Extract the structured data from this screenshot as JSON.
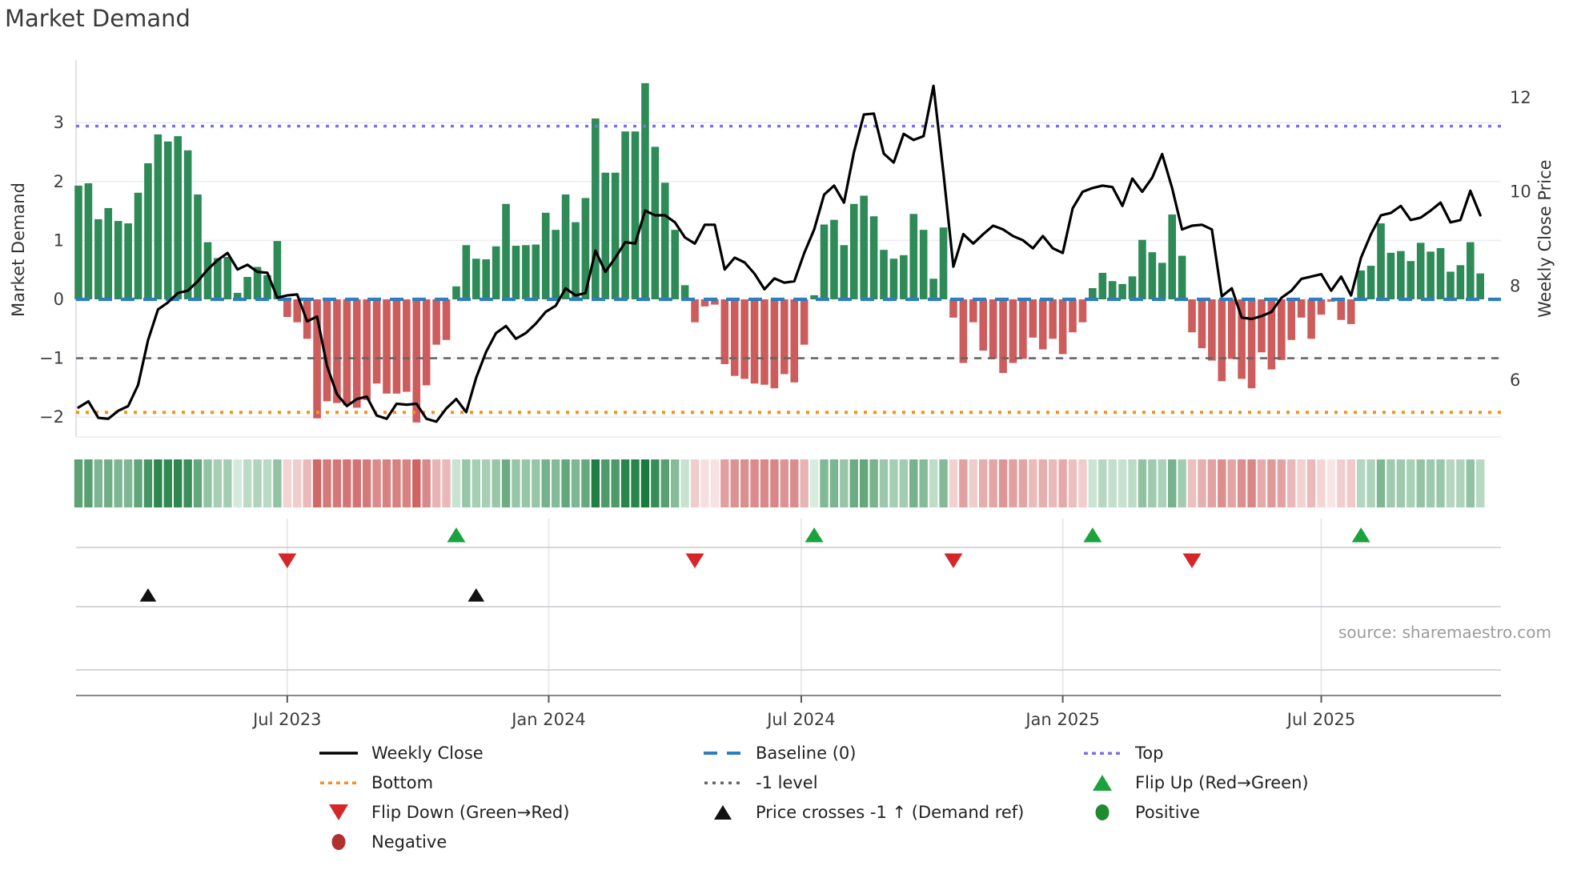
{
  "title": "Market Demand",
  "source_text": "source: sharemaestro.com",
  "left_axis": {
    "label": "Market Demand",
    "ticks": [
      {
        "v": 3,
        "t": "3"
      },
      {
        "v": 2,
        "t": "2"
      },
      {
        "v": 1,
        "t": "1"
      },
      {
        "v": 0,
        "t": "0"
      },
      {
        "v": -1,
        "t": "−1"
      },
      {
        "v": -2,
        "t": "−2"
      }
    ]
  },
  "right_axis": {
    "label": "Weekly Close Price",
    "ticks": [
      {
        "v": 12,
        "t": "12"
      },
      {
        "v": 10,
        "t": "10"
      },
      {
        "v": 8,
        "t": "8"
      },
      {
        "v": 6,
        "t": "6"
      }
    ]
  },
  "x_axis": {
    "ticks": [
      {
        "label": "Jul 2023",
        "week": 21.0
      },
      {
        "label": "Jan 2024",
        "week": 47.3
      },
      {
        "label": "Jul 2024",
        "week": 72.7
      },
      {
        "label": "Jan 2025",
        "week": 99.0
      },
      {
        "label": "Jul 2025",
        "week": 125.0
      }
    ]
  },
  "legend": [
    {
      "label": "Weekly Close",
      "swatch": "line-black",
      "col": 0,
      "row": 0
    },
    {
      "label": "Bottom",
      "swatch": "dot-orange",
      "col": 0,
      "row": 1
    },
    {
      "label": "Flip Down (Green→Red)",
      "swatch": "tri-down-red",
      "col": 0,
      "row": 2
    },
    {
      "label": "Negative",
      "swatch": "circle-darkred",
      "col": 0,
      "row": 3
    },
    {
      "label": "Baseline (0)",
      "swatch": "dash-blue",
      "col": 1,
      "row": 0
    },
    {
      "label": "-1 level",
      "swatch": "dot-gray",
      "col": 1,
      "row": 1
    },
    {
      "label": "Price crosses -1 ↑ (Demand ref)",
      "swatch": "tri-up-black",
      "col": 1,
      "row": 2
    },
    {
      "label": "Top",
      "swatch": "dot-purple",
      "col": 2,
      "row": 0
    },
    {
      "label": "Flip Up (Red→Green)",
      "swatch": "tri-up-green",
      "col": 2,
      "row": 1
    },
    {
      "label": "Positive",
      "swatch": "circle-green",
      "col": 2,
      "row": 2
    }
  ],
  "colors": {
    "bar_positive": "#2e8b57",
    "bar_negative": "#cd5c5c",
    "price_line": "#000000",
    "baseline": "#2e7ebf",
    "top_line": "#7b72e9",
    "bottom_line": "#f59120",
    "minus1_line": "#666666",
    "flip_up": "#1aa33c",
    "flip_down": "#d62728",
    "price_cross": "#111111",
    "positive_dot": "#1e8b2e",
    "negative_dot": "#b03030",
    "grid": "#ececf2",
    "spine": "#d9d9e3",
    "panel_grid": "#c9c9cf",
    "panel_vgrid": "#e4e4ea",
    "axis_line": "#8a8a8a",
    "tick_text": "#444444"
  },
  "chart_data": {
    "type": "bar+line",
    "title": "Market Demand",
    "x_unit": "week (Feb 2023 – Oct 2025)",
    "ylabel_left": "Market Demand",
    "ylabel_right": "Weekly Close Price",
    "ylim_left": [
      -2.6,
      4.1
    ],
    "ylim_right": [
      4.8,
      12.8
    ],
    "grid": true,
    "legend_position": "bottom",
    "reference_lines": {
      "top": 2.94,
      "baseline": 0,
      "minus1": -1,
      "bottom": -1.92
    },
    "markers": {
      "flip_up_weeks": [
        38,
        74,
        102,
        129
      ],
      "flip_down_weeks": [
        21,
        62,
        88,
        112
      ],
      "price_cross_weeks": [
        7,
        40
      ]
    },
    "series": [
      {
        "name": "Market Demand (weekly bars)",
        "type": "bar",
        "values": [
          1.93,
          1.97,
          1.36,
          1.55,
          1.33,
          1.29,
          1.81,
          2.31,
          2.8,
          2.68,
          2.77,
          2.53,
          1.78,
          0.97,
          0.7,
          0.72,
          0.11,
          0.38,
          0.55,
          0.41,
          0.99,
          -0.3,
          -0.39,
          -0.67,
          -2.02,
          -1.73,
          -1.76,
          -1.8,
          -1.84,
          -1.71,
          -1.43,
          -1.6,
          -1.6,
          -1.57,
          -2.09,
          -1.46,
          -0.77,
          -0.69,
          0.22,
          0.92,
          0.69,
          0.68,
          0.9,
          1.62,
          0.91,
          0.92,
          0.93,
          1.47,
          1.18,
          1.78,
          1.31,
          1.72,
          3.07,
          2.15,
          2.15,
          2.85,
          2.85,
          3.67,
          2.59,
          1.98,
          1.18,
          0.24,
          -0.39,
          -0.12,
          -0.09,
          -1.1,
          -1.3,
          -1.35,
          -1.43,
          -1.45,
          -1.51,
          -1.27,
          -1.41,
          -0.77,
          0.07,
          1.27,
          1.35,
          0.92,
          1.62,
          1.76,
          1.41,
          0.84,
          0.69,
          0.75,
          1.45,
          1.18,
          0.35,
          1.22,
          -0.31,
          -1.08,
          -0.39,
          -0.87,
          -1.01,
          -1.25,
          -1.08,
          -1.01,
          -0.65,
          -0.85,
          -0.67,
          -0.93,
          -0.56,
          -0.39,
          0.19,
          0.45,
          0.31,
          0.26,
          0.39,
          1.01,
          0.8,
          0.62,
          1.44,
          0.74,
          -0.56,
          -0.83,
          -1.04,
          -1.39,
          -1.01,
          -1.35,
          -1.51,
          -0.9,
          -1.19,
          -1.03,
          -0.69,
          -0.31,
          -0.67,
          -0.26,
          -0.04,
          -0.35,
          -0.42,
          0.49,
          0.57,
          1.29,
          0.79,
          0.82,
          0.65,
          0.96,
          0.81,
          0.87,
          0.47,
          0.58,
          0.97,
          0.44
        ]
      },
      {
        "name": "Weekly Close",
        "type": "line",
        "values": [
          5.42,
          5.55,
          5.2,
          5.18,
          5.35,
          5.45,
          5.9,
          6.85,
          7.5,
          7.65,
          7.85,
          7.9,
          8.1,
          8.35,
          8.55,
          8.7,
          8.35,
          8.45,
          8.3,
          8.28,
          7.75,
          7.8,
          7.82,
          7.25,
          7.35,
          6.3,
          5.7,
          5.45,
          5.6,
          5.65,
          5.25,
          5.18,
          5.5,
          5.48,
          5.5,
          5.18,
          5.12,
          5.4,
          5.6,
          5.32,
          6.05,
          6.6,
          7.0,
          7.15,
          6.88,
          7.0,
          7.2,
          7.45,
          7.58,
          7.95,
          7.8,
          7.85,
          8.75,
          8.3,
          8.6,
          8.93,
          8.9,
          9.6,
          9.5,
          9.5,
          9.35,
          9.03,
          8.9,
          9.3,
          9.3,
          8.35,
          8.6,
          8.5,
          8.26,
          7.93,
          8.16,
          8.07,
          8.1,
          8.7,
          9.2,
          9.94,
          10.13,
          9.77,
          10.84,
          11.64,
          11.66,
          10.81,
          10.62,
          11.23,
          11.1,
          11.18,
          12.25,
          10.4,
          8.41,
          9.1,
          8.9,
          9.1,
          9.28,
          9.2,
          9.06,
          8.97,
          8.8,
          9.06,
          8.8,
          8.7,
          9.65,
          10.0,
          10.08,
          10.13,
          10.1,
          9.7,
          10.28,
          10.0,
          10.3,
          10.8,
          10.08,
          9.2,
          9.28,
          9.3,
          9.2,
          7.78,
          7.95,
          7.33,
          7.3,
          7.36,
          7.45,
          7.75,
          7.9,
          8.15,
          8.2,
          8.25,
          7.9,
          8.2,
          7.8,
          8.6,
          9.1,
          9.5,
          9.55,
          9.7,
          9.4,
          9.45,
          9.6,
          9.77,
          9.35,
          9.4,
          10.02,
          9.5
        ]
      }
    ]
  }
}
